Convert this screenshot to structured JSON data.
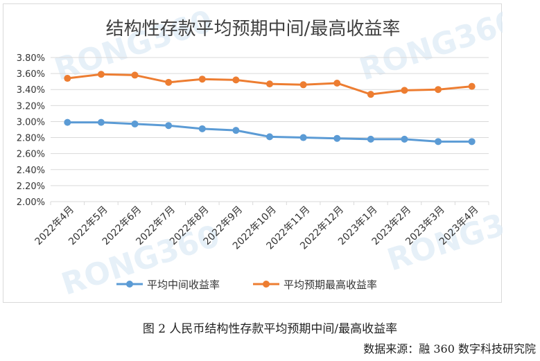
{
  "chart_data": {
    "type": "line",
    "title": "结构性存款平均预期中间/最高收益率",
    "categories": [
      "2022年4月",
      "2022年5月",
      "2022年6月",
      "2022年7月",
      "2022年8月",
      "2022年9月",
      "2022年10月",
      "2022年11月",
      "2022年12月",
      "2023年1月",
      "2023年2月",
      "2023年3月",
      "2023年4月"
    ],
    "series": [
      {
        "name": "平均中间收益率",
        "color": "#5B9BD5",
        "values": [
          2.99,
          2.99,
          2.97,
          2.95,
          2.91,
          2.89,
          2.81,
          2.8,
          2.79,
          2.78,
          2.78,
          2.75,
          2.75
        ]
      },
      {
        "name": "平均预期最高收益率",
        "color": "#ED7D31",
        "values": [
          3.54,
          3.59,
          3.58,
          3.49,
          3.53,
          3.52,
          3.47,
          3.46,
          3.48,
          3.34,
          3.39,
          3.4,
          3.44
        ]
      }
    ],
    "ylim": [
      2.0,
      3.8
    ],
    "yticks": [
      "2.00%",
      "2.20%",
      "2.40%",
      "2.60%",
      "2.80%",
      "3.00%",
      "3.20%",
      "3.40%",
      "3.60%",
      "3.80%"
    ],
    "grid": true,
    "legend": "bottom",
    "watermark": "RONG360"
  },
  "caption": "图 2  人民币结构性存款平均预期中间/最高收益率",
  "source": "数据来源：融 360 数字科技研究院"
}
